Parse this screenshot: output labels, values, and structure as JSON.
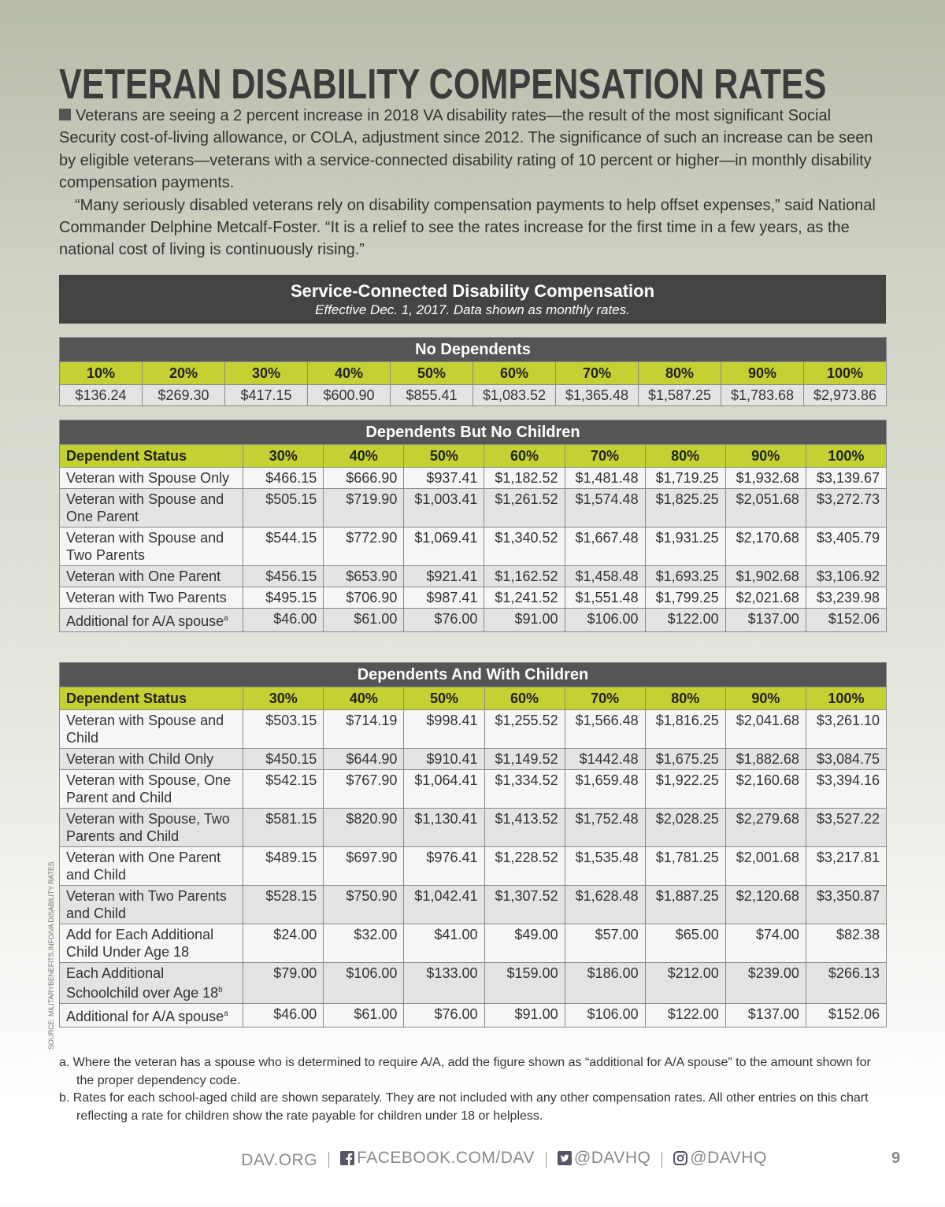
{
  "title": "VETERAN DISABILITY COMPENSATION RATES",
  "intro": [
    "Veterans are seeing a 2 percent increase in 2018 VA disability rates—the result of the most significant Social Security cost-of-living allowance, or COLA, adjustment since 2012. The significance of such an increase can be seen by eligible veterans—veterans with a service-connected disability rating of 10 percent or higher—in monthly disability compensation payments.",
    "“Many seriously disabled veterans rely on disability compensation payments to help offset expenses,” said National Commander Delphine Metcalf-Foster. “It is a relief to see the rates increase for the first time in a few years, as the national cost of living is continuously rising.”"
  ],
  "banner": {
    "title": "Service-Connected Disability Compensation",
    "subtitle": "Effective Dec. 1, 2017. Data shown as monthly rates."
  },
  "no_dependents": {
    "title": "No Dependents",
    "header": [
      "10%",
      "20%",
      "30%",
      "40%",
      "50%",
      "60%",
      "70%",
      "80%",
      "90%",
      "100%"
    ],
    "values": [
      "$136.24",
      "$269.30",
      "$417.15",
      "$600.90",
      "$855.41",
      "$1,083.52",
      "$1,365.48",
      "$1,587.25",
      "$1,783.68",
      "$2,973.86"
    ]
  },
  "no_children": {
    "title": "Dependents But No Children",
    "header": [
      "Dependent Status",
      "30%",
      "40%",
      "50%",
      "60%",
      "70%",
      "80%",
      "90%",
      "100%"
    ],
    "rows": [
      {
        "status": "Veteran with Spouse Only",
        "values": [
          "$466.15",
          "$666.90",
          "$937.41",
          "$1,182.52",
          "$1,481.48",
          "$1,719.25",
          "$1,932.68",
          "$3,139.67"
        ]
      },
      {
        "status": "Veteran with Spouse and One Parent",
        "values": [
          "$505.15",
          "$719.90",
          "$1,003.41",
          "$1,261.52",
          "$1,574.48",
          "$1,825.25",
          "$2,051.68",
          "$3,272.73"
        ]
      },
      {
        "status": "Veteran with Spouse and Two Parents",
        "values": [
          "$544.15",
          "$772.90",
          "$1,069.41",
          "$1,340.52",
          "$1,667.48",
          "$1,931.25",
          "$2,170.68",
          "$3,405.79"
        ]
      },
      {
        "status": "Veteran with One Parent",
        "values": [
          "$456.15",
          "$653.90",
          "$921.41",
          "$1,162.52",
          "$1,458.48",
          "$1,693.25",
          "$1,902.68",
          "$3,106.92"
        ]
      },
      {
        "status": "Veteran with Two Parents",
        "values": [
          "$495.15",
          "$706.90",
          "$987.41",
          "$1,241.52",
          "$1,551.48",
          "$1,799.25",
          "$2,021.68",
          "$3,239.98"
        ]
      },
      {
        "status": "Additional for A/A spouse",
        "note": "a",
        "values": [
          "$46.00",
          "$61.00",
          "$76.00",
          "$91.00",
          "$106.00",
          "$122.00",
          "$137.00",
          "$152.06"
        ]
      }
    ]
  },
  "with_children": {
    "title": "Dependents And With Children",
    "header": [
      "Dependent Status",
      "30%",
      "40%",
      "50%",
      "60%",
      "70%",
      "80%",
      "90%",
      "100%"
    ],
    "rows": [
      {
        "status": "Veteran with Spouse and Child",
        "values": [
          "$503.15",
          "$714.19",
          "$998.41",
          "$1,255.52",
          "$1,566.48",
          "$1,816.25",
          "$2,041.68",
          "$3,261.10"
        ]
      },
      {
        "status": "Veteran with Child Only",
        "values": [
          "$450.15",
          "$644.90",
          "$910.41",
          "$1,149.52",
          "$1442.48",
          "$1,675.25",
          "$1,882.68",
          "$3,084.75"
        ]
      },
      {
        "status": "Veteran with Spouse, One Parent and Child",
        "values": [
          "$542.15",
          "$767.90",
          "$1,064.41",
          "$1,334.52",
          "$1,659.48",
          "$1,922.25",
          "$2,160.68",
          "$3,394.16"
        ]
      },
      {
        "status": "Veteran with Spouse, Two Parents and Child",
        "values": [
          "$581.15",
          "$820.90",
          "$1,130.41",
          "$1,413.52",
          "$1,752.48",
          "$2,028.25",
          "$2,279.68",
          "$3,527.22"
        ]
      },
      {
        "status": "Veteran with One Parent and Child",
        "values": [
          "$489.15",
          "$697.90",
          "$976.41",
          "$1,228.52",
          "$1,535.48",
          "$1,781.25",
          "$2,001.68",
          "$3,217.81"
        ]
      },
      {
        "status": "Veteran with Two Parents and Child",
        "values": [
          "$528.15",
          "$750.90",
          "$1,042.41",
          "$1,307.52",
          "$1,628.48",
          "$1,887.25",
          "$2,120.68",
          "$3,350.87"
        ]
      },
      {
        "status": "Add for Each Additional Child Under Age 18",
        "values": [
          "$24.00",
          "$32.00",
          "$41.00",
          "$49.00",
          "$57.00",
          "$65.00",
          "$74.00",
          "$82.38"
        ]
      },
      {
        "status": "Each Additional Schoolchild over Age 18",
        "note": "b",
        "values": [
          "$79.00",
          "$106.00",
          "$133.00",
          "$159.00",
          "$186.00",
          "$212.00",
          "$239.00",
          "$266.13"
        ]
      },
      {
        "status": "Additional for A/A spouse",
        "note": "a",
        "values": [
          "$46.00",
          "$61.00",
          "$76.00",
          "$91.00",
          "$106.00",
          "$122.00",
          "$137.00",
          "$152.06"
        ]
      }
    ]
  },
  "footnotes": [
    {
      "marker": "a.",
      "text": "Where the veteran has a spouse who is determined to require A/A, add the figure shown as “additional for A/A spouse” to the amount shown for the proper dependency code."
    },
    {
      "marker": "b.",
      "text": "Rates for each school-aged child are shown separately. They are not included with any other compensation rates. All other entries on this chart reflecting a rate for children show the rate payable for children under 18 or helpless."
    }
  ],
  "source": "SOURCE: MILITARYBENEFITS.INFO/VA DISABILITY RATES",
  "footer": {
    "links": [
      "DAV.ORG",
      "FACEBOOK.COM/DAV",
      "@DAVHQ",
      "@DAVHQ"
    ],
    "page": "9"
  }
}
